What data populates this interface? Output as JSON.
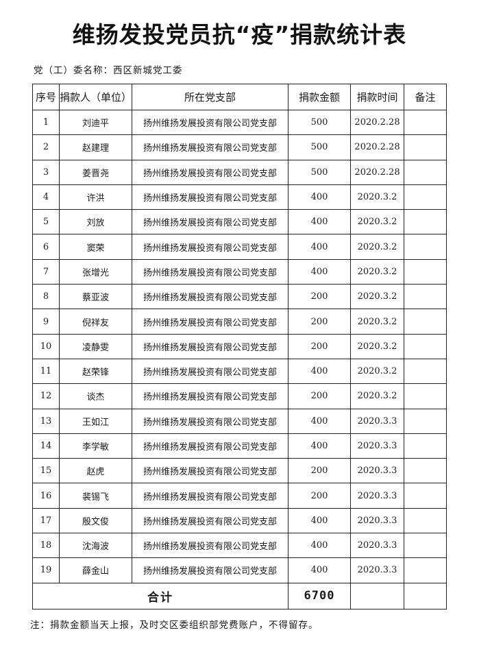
{
  "title": "维扬发投党员抗“疫”捐款统计表",
  "committee": "党（工）委名称：西区新城党工委",
  "columns": [
    "序号",
    "捐款人（单位）",
    "所在党支部",
    "捐款金额",
    "捐款时间",
    "备注"
  ],
  "rows": [
    {
      "no": "1",
      "name": "刘迪平",
      "branch": "扬州维扬发展投资有限公司党支部",
      "amount": "500",
      "date": "2020.2.28",
      "note": ""
    },
    {
      "no": "2",
      "name": "赵建理",
      "branch": "扬州维扬发展投资有限公司党支部",
      "amount": "500",
      "date": "2020.2.28",
      "note": ""
    },
    {
      "no": "3",
      "name": "姜晋尧",
      "branch": "扬州维扬发展投资有限公司党支部",
      "amount": "500",
      "date": "2020.2.28",
      "note": ""
    },
    {
      "no": "4",
      "name": "许洪",
      "branch": "扬州维扬发展投资有限公司党支部",
      "amount": "400",
      "date": "2020.3.2",
      "note": ""
    },
    {
      "no": "5",
      "name": "刘放",
      "branch": "扬州维扬发展投资有限公司党支部",
      "amount": "400",
      "date": "2020.3.2",
      "note": ""
    },
    {
      "no": "6",
      "name": "窦荣",
      "branch": "扬州维扬发展投资有限公司党支部",
      "amount": "400",
      "date": "2020.3.2",
      "note": ""
    },
    {
      "no": "7",
      "name": "张增光",
      "branch": "扬州维扬发展投资有限公司党支部",
      "amount": "400",
      "date": "2020.3.2",
      "note": ""
    },
    {
      "no": "8",
      "name": "蔡亚波",
      "branch": "扬州维扬发展投资有限公司党支部",
      "amount": "200",
      "date": "2020.3.2",
      "note": ""
    },
    {
      "no": "9",
      "name": "倪祥友",
      "branch": "扬州维扬发展投资有限公司党支部",
      "amount": "200",
      "date": "2020.3.2",
      "note": ""
    },
    {
      "no": "10",
      "name": "凌静雯",
      "branch": "扬州维扬发展投资有限公司党支部",
      "amount": "200",
      "date": "2020.3.2",
      "note": ""
    },
    {
      "no": "11",
      "name": "赵荣锋",
      "branch": "扬州维扬发展投资有限公司党支部",
      "amount": "400",
      "date": "2020.3.2",
      "note": ""
    },
    {
      "no": "12",
      "name": "谈杰",
      "branch": "扬州维扬发展投资有限公司党支部",
      "amount": "200",
      "date": "2020.3.2",
      "note": ""
    },
    {
      "no": "13",
      "name": "王如江",
      "branch": "扬州维扬发展投资有限公司党支部",
      "amount": "400",
      "date": "2020.3.3",
      "note": ""
    },
    {
      "no": "14",
      "name": "李学敏",
      "branch": "扬州维扬发展投资有限公司党支部",
      "amount": "400",
      "date": "2020.3.3",
      "note": ""
    },
    {
      "no": "15",
      "name": "赵虎",
      "branch": "扬州维扬发展投资有限公司党支部",
      "amount": "200",
      "date": "2020.3.3",
      "note": ""
    },
    {
      "no": "16",
      "name": "裴锡飞",
      "branch": "扬州维扬发展投资有限公司党支部",
      "amount": "200",
      "date": "2020.3.3",
      "note": ""
    },
    {
      "no": "17",
      "name": "殷文俊",
      "branch": "扬州维扬发展投资有限公司党支部",
      "amount": "400",
      "date": "2020.3.3",
      "note": ""
    },
    {
      "no": "18",
      "name": "沈海波",
      "branch": "扬州维扬发展投资有限公司党支部",
      "amount": "400",
      "date": "2020.3.3",
      "note": ""
    },
    {
      "no": "19",
      "name": "薛金山",
      "branch": "扬州维扬发展投资有限公司党支部",
      "amount": "400",
      "date": "2020.3.3",
      "note": ""
    }
  ],
  "total": {
    "label": "合计",
    "amount": "6700"
  },
  "note": "注：捐款金额当天上报，及时交区委组织部党费账户，不得留存。"
}
